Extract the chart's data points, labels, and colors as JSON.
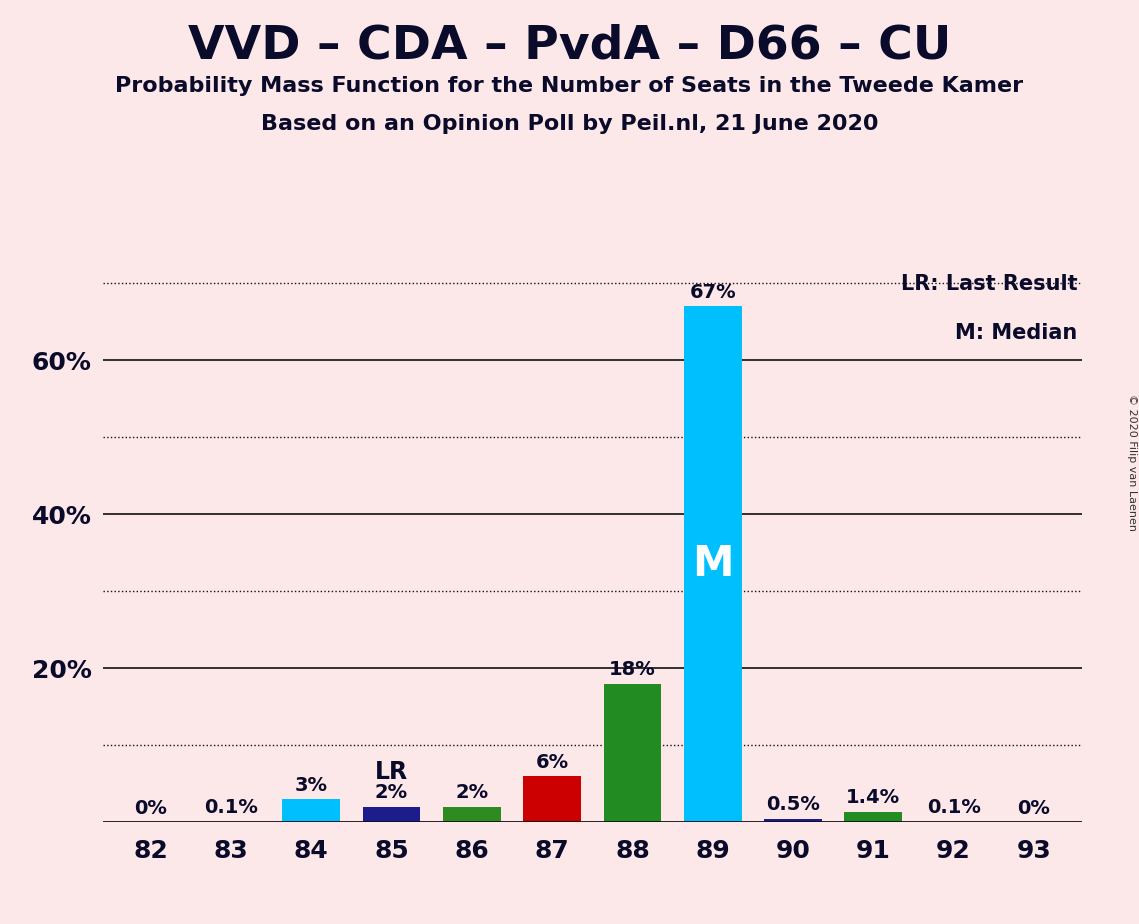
{
  "title": "VVD – CDA – PvdA – D66 – CU",
  "subtitle1": "Probability Mass Function for the Number of Seats in the Tweede Kamer",
  "subtitle2": "Based on an Opinion Poll by Peil.nl, 21 June 2020",
  "copyright": "© 2020 Filip van Laenen",
  "legend_lr": "LR: Last Result",
  "legend_m": "M: Median",
  "background_color": "#fce8e8",
  "categories": [
    82,
    83,
    84,
    85,
    86,
    87,
    88,
    89,
    90,
    91,
    92,
    93
  ],
  "values": [
    0.0,
    0.1,
    3.0,
    2.0,
    2.0,
    6.0,
    18.0,
    67.0,
    0.5,
    1.4,
    0.1,
    0.0
  ],
  "labels": [
    "0%",
    "0.1%",
    "3%",
    "2%",
    "2%",
    "6%",
    "18%",
    "67%",
    "0.5%",
    "1.4%",
    "0.1%",
    "0%"
  ],
  "color_map": {
    "82": "#87CEEB",
    "83": "#87CEEB",
    "84": "#00BFFF",
    "85": "#1C1C8C",
    "86": "#2E8B22",
    "87": "#CC0000",
    "88": "#228B22",
    "89": "#00BFFF",
    "90": "#1C1C8C",
    "91": "#228B22",
    "92": "#1C1C8C",
    "93": "#1C1C8C"
  },
  "median_bar": 89,
  "lr_bar": 85,
  "median_label": "M",
  "lr_label": "LR",
  "ylim": [
    0,
    72
  ],
  "grid_solid": [
    20,
    40,
    60
  ],
  "grid_dotted": [
    10,
    30,
    50,
    70
  ],
  "title_fontsize": 34,
  "subtitle_fontsize": 16,
  "axis_fontsize": 18,
  "label_fontsize": 14,
  "lr_fontsize": 17,
  "m_fontsize": 30,
  "legend_fontsize": 15
}
